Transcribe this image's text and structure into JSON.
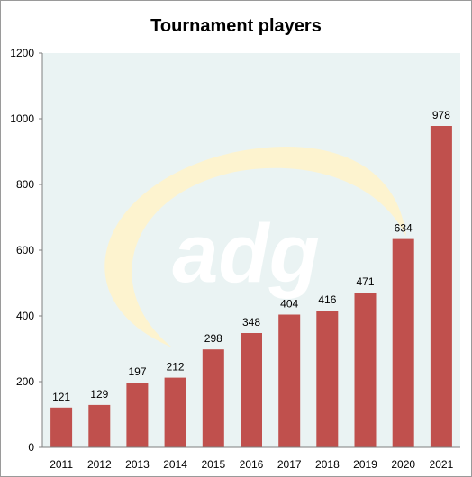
{
  "chart_data": {
    "type": "bar",
    "title": "Tournament players",
    "xlabel": "",
    "ylabel": "",
    "categories": [
      "2011",
      "2012",
      "2013",
      "2014",
      "2015",
      "2016",
      "2017",
      "2018",
      "2019",
      "2020",
      "2021"
    ],
    "values": [
      121,
      129,
      197,
      212,
      298,
      348,
      404,
      416,
      471,
      634,
      978
    ],
    "ylim": [
      0,
      1200
    ],
    "yticks": [
      0,
      200,
      400,
      600,
      800,
      1000,
      1200
    ],
    "grid": false,
    "legend": "none",
    "bar_color": "#c0504d",
    "plot_background": "#eaf3f3",
    "watermark": {
      "text": "adg",
      "swoosh_color": "#fdf3cf",
      "text_color": "#ffffff"
    }
  }
}
